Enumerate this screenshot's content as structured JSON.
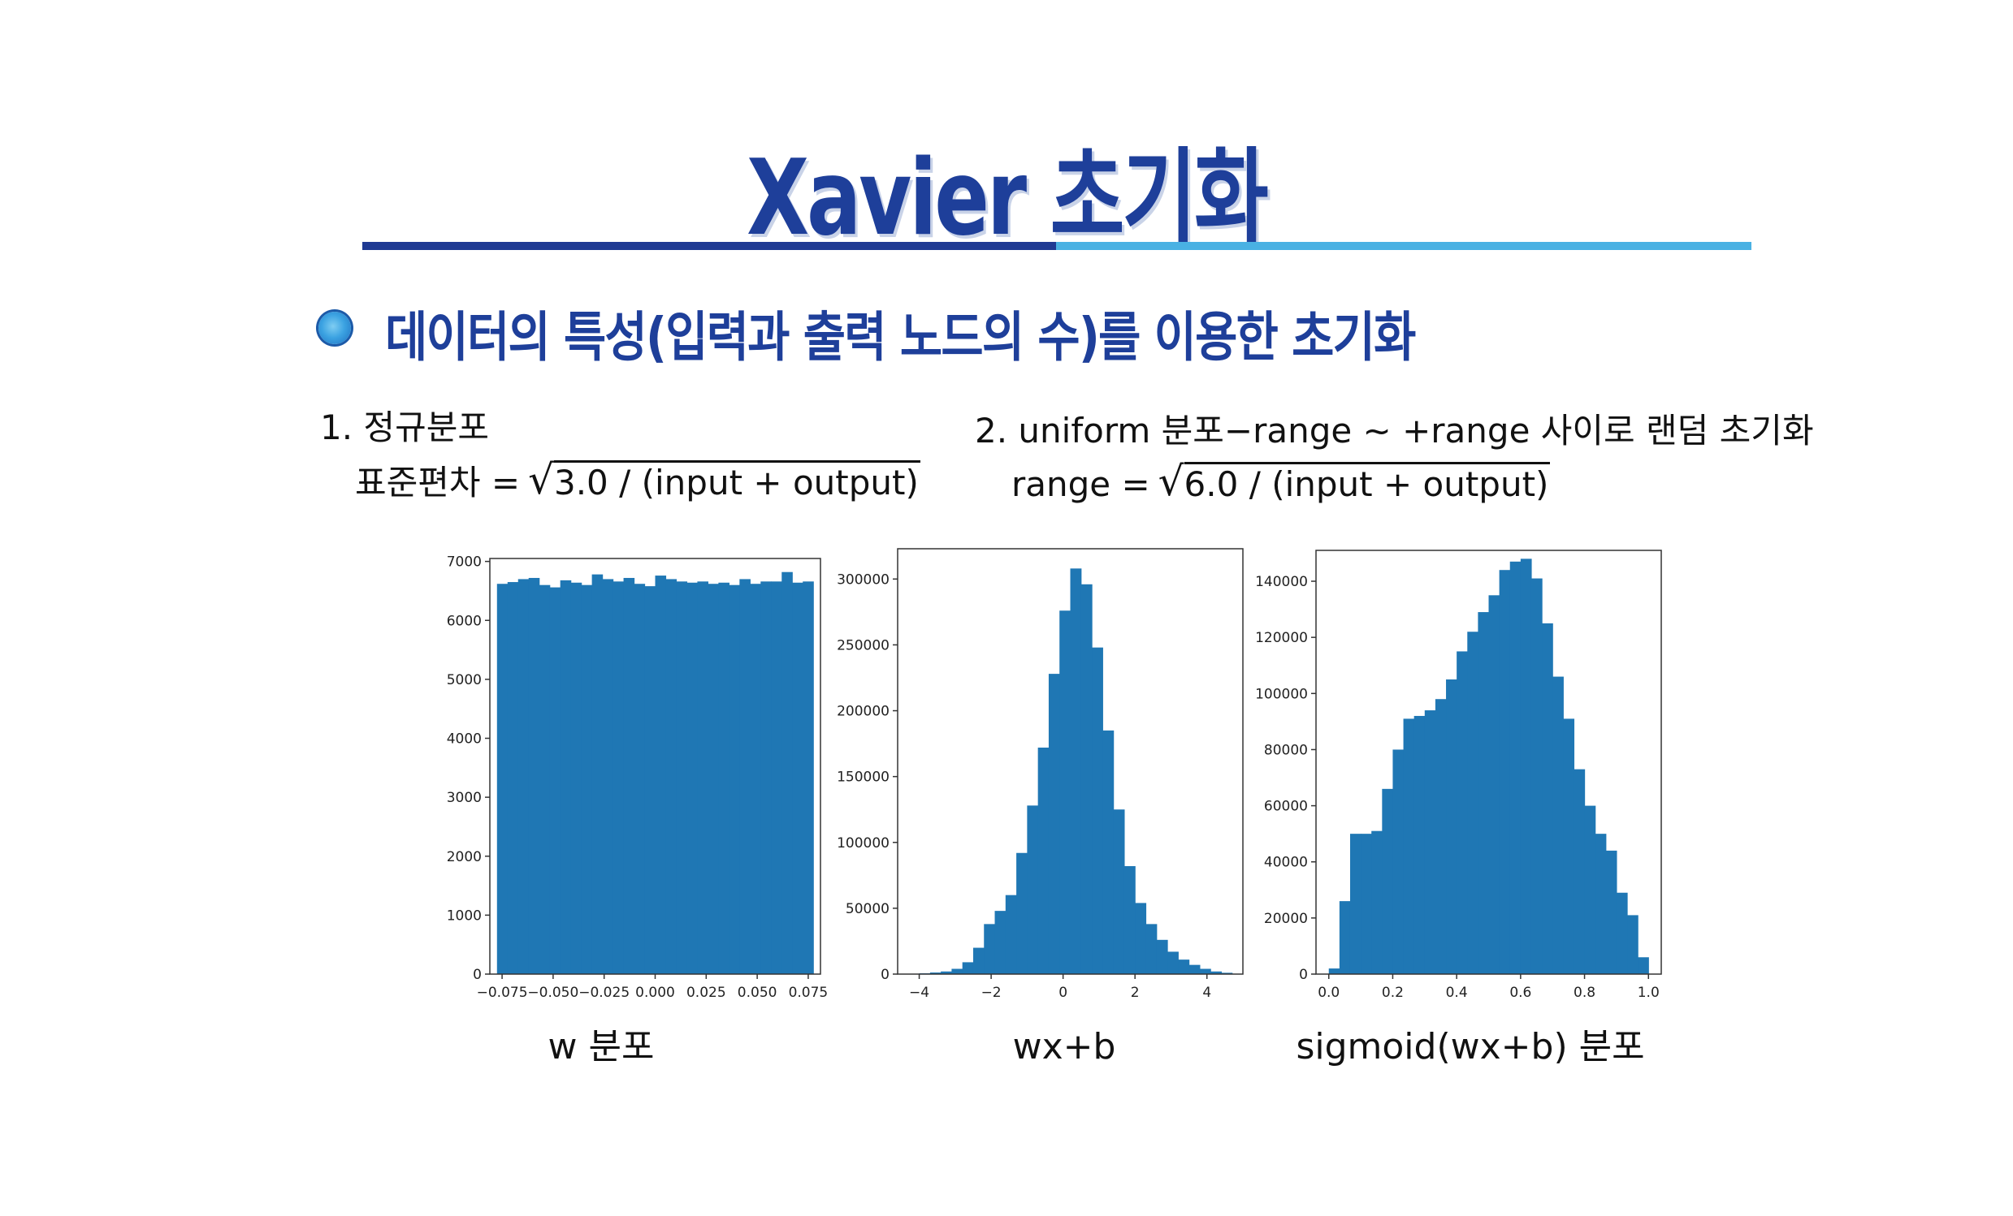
{
  "title": "Xavier 초기화",
  "heading": "데이터의 특성(입력과 출력 노드의 수)를 이용한 초기화",
  "colors": {
    "title": "#1e3f9a",
    "rule_dark": "#1f3a93",
    "rule_light": "#49b1e3",
    "bar": "#1f77b4",
    "bullet": "#3ca3e2"
  },
  "sections": {
    "normal": {
      "label": "1. 정규분포",
      "formula_prefix": "표준편차 =",
      "radicand": "3.0 / (input + output)"
    },
    "uniform": {
      "label": "2. uniform 분포−range ~  +range 사이로 랜덤 초기화",
      "formula_prefix": "range =",
      "radicand": "6.0 / (input + output)"
    }
  },
  "chart_data": [
    {
      "type": "bar",
      "title": "",
      "caption": "w 분포",
      "xlabel": "",
      "ylabel": "",
      "xlim": [
        -0.081,
        0.081
      ],
      "ylim": [
        0,
        7050
      ],
      "xticks": [
        -0.075,
        -0.05,
        -0.025,
        0.0,
        0.025,
        0.05,
        0.075
      ],
      "xtick_labels": [
        "−0.075",
        "−0.050",
        "−0.025",
        "0.000",
        "0.025",
        "0.050",
        "0.075"
      ],
      "yticks": [
        0,
        1000,
        2000,
        3000,
        4000,
        5000,
        6000,
        7000
      ],
      "ytick_labels": [
        "0",
        "1000",
        "2000",
        "3000",
        "4000",
        "5000",
        "6000",
        "7000"
      ],
      "bin_range": [
        -0.0775,
        0.0775
      ],
      "values": [
        6620,
        6650,
        6700,
        6720,
        6600,
        6560,
        6680,
        6640,
        6600,
        6780,
        6700,
        6660,
        6720,
        6620,
        6580,
        6760,
        6700,
        6660,
        6640,
        6660,
        6620,
        6640,
        6600,
        6700,
        6620,
        6660,
        6660,
        6820,
        6640,
        6660
      ]
    },
    {
      "type": "bar",
      "title": "",
      "caption": "wx+b",
      "xlabel": "",
      "ylabel": "",
      "xlim": [
        -4.6,
        5.0
      ],
      "ylim": [
        0,
        323000
      ],
      "xticks": [
        -4,
        -2,
        0,
        2,
        4
      ],
      "xtick_labels": [
        "−4",
        "−2",
        "0",
        "2",
        "4"
      ],
      "yticks": [
        0,
        50000,
        100000,
        150000,
        200000,
        250000,
        300000
      ],
      "ytick_labels": [
        "0",
        "50000",
        "100000",
        "150000",
        "200000",
        "250000",
        "300000"
      ],
      "bin_range": [
        -4.3,
        4.7
      ],
      "values": [
        300,
        600,
        1200,
        2000,
        4000,
        9000,
        20000,
        38000,
        48000,
        60000,
        92000,
        128000,
        172000,
        228000,
        276000,
        308000,
        296000,
        248000,
        185000,
        125000,
        82000,
        54000,
        38000,
        26000,
        17000,
        11000,
        7000,
        4000,
        2000,
        1000
      ]
    },
    {
      "type": "bar",
      "title": "",
      "caption": "sigmoid(wx+b) 분포",
      "xlabel": "",
      "ylabel": "",
      "xlim": [
        -0.04,
        1.04
      ],
      "ylim": [
        0,
        151000
      ],
      "xticks": [
        0.0,
        0.2,
        0.4,
        0.6,
        0.8,
        1.0
      ],
      "xtick_labels": [
        "0.0",
        "0.2",
        "0.4",
        "0.6",
        "0.8",
        "1.0"
      ],
      "yticks": [
        0,
        20000,
        40000,
        60000,
        80000,
        100000,
        120000,
        140000
      ],
      "ytick_labels": [
        "0",
        "20000",
        "40000",
        "60000",
        "80000",
        "100000",
        "120000",
        "140000"
      ],
      "bin_range": [
        0.0,
        1.0
      ],
      "values": [
        2000,
        26000,
        50000,
        50000,
        51000,
        66000,
        80000,
        91000,
        92000,
        94000,
        98000,
        105000,
        115000,
        122000,
        129000,
        135000,
        144000,
        147000,
        148000,
        141000,
        125000,
        106000,
        91000,
        73000,
        60000,
        50000,
        44000,
        29000,
        21000,
        6000
      ]
    }
  ]
}
